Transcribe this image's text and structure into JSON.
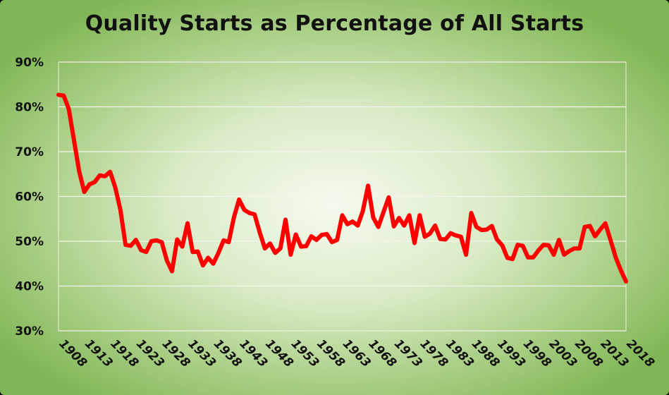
{
  "chart_data": {
    "type": "line",
    "title": "Quality Starts as Percentage of All Starts",
    "xlabel": "",
    "ylabel": "",
    "x_tick_labels": [
      "1908",
      "1913",
      "1918",
      "1923",
      "1928",
      "1933",
      "1938",
      "1943",
      "1948",
      "1953",
      "1958",
      "1963",
      "1968",
      "1973",
      "1978",
      "1983",
      "1988",
      "1993",
      "1998",
      "2003",
      "2008",
      "2013",
      "2018"
    ],
    "y_tick_labels": [
      "30%",
      "40%",
      "50%",
      "60%",
      "70%",
      "80%",
      "90%"
    ],
    "ylim": [
      30,
      90
    ],
    "xlim": [
      1908,
      2018
    ],
    "grid": true,
    "legend": "none",
    "line_color": "#ff0000",
    "series": [
      {
        "x": [
          1908,
          1909,
          1910,
          1911,
          1912,
          1913,
          1914,
          1915,
          1916,
          1917,
          1918,
          1919,
          1920,
          1921,
          1922,
          1923,
          1924,
          1925,
          1926,
          1927,
          1928,
          1929,
          1930,
          1931,
          1932,
          1933,
          1934,
          1935,
          1936,
          1937,
          1938,
          1939,
          1940,
          1941,
          1942,
          1943,
          1944,
          1945,
          1946,
          1947,
          1948,
          1949,
          1950,
          1951,
          1952,
          1953,
          1954,
          1955,
          1956,
          1957,
          1958,
          1959,
          1960,
          1961,
          1962,
          1963,
          1964,
          1965,
          1966,
          1967,
          1968,
          1969,
          1970,
          1971,
          1972,
          1973,
          1974,
          1975,
          1976,
          1977,
          1978,
          1979,
          1980,
          1981,
          1982,
          1983,
          1984,
          1985,
          1986,
          1987,
          1988,
          1989,
          1990,
          1991,
          1992,
          1993,
          1994,
          1995,
          1996,
          1997,
          1998,
          1999,
          2000,
          2001,
          2002,
          2003,
          2004,
          2005,
          2006,
          2007,
          2008,
          2009,
          2010,
          2011,
          2012,
          2013,
          2014,
          2015,
          2016,
          2017,
          2018
        ],
        "values": [
          82.7,
          82.5,
          79.5,
          72.5,
          65.6,
          61.0,
          62.7,
          63.2,
          64.7,
          64.5,
          65.5,
          62.0,
          57.0,
          49.2,
          49.0,
          50.3,
          48.0,
          47.6,
          50.0,
          50.2,
          49.8,
          45.7,
          43.3,
          50.4,
          48.8,
          54.0,
          47.6,
          47.7,
          44.6,
          46.3,
          45.0,
          47.4,
          50.2,
          49.8,
          55.3,
          59.3,
          57.0,
          56.3,
          56.0,
          52.0,
          48.4,
          49.5,
          47.4,
          48.4,
          54.8,
          47.0,
          51.5,
          48.8,
          48.9,
          51.1,
          50.3,
          51.4,
          51.6,
          49.8,
          50.3,
          55.8,
          53.8,
          54.4,
          53.5,
          56.8,
          62.4,
          55.3,
          53.2,
          56.5,
          59.8,
          53.3,
          55.2,
          53.5,
          55.8,
          49.6,
          55.8,
          51.0,
          51.7,
          53.5,
          50.5,
          50.4,
          51.8,
          51.3,
          51.0,
          47.0,
          56.3,
          53.2,
          52.5,
          52.6,
          53.4,
          50.4,
          49.1,
          46.3,
          46.0,
          49.2,
          49.0,
          46.4,
          46.4,
          47.9,
          49.2,
          49.1,
          47.0,
          50.3,
          47.0,
          47.8,
          48.4,
          48.4,
          53.2,
          53.4,
          51.1,
          52.6,
          54.0,
          50.3,
          46.4,
          43.5,
          41.0
        ]
      }
    ]
  }
}
